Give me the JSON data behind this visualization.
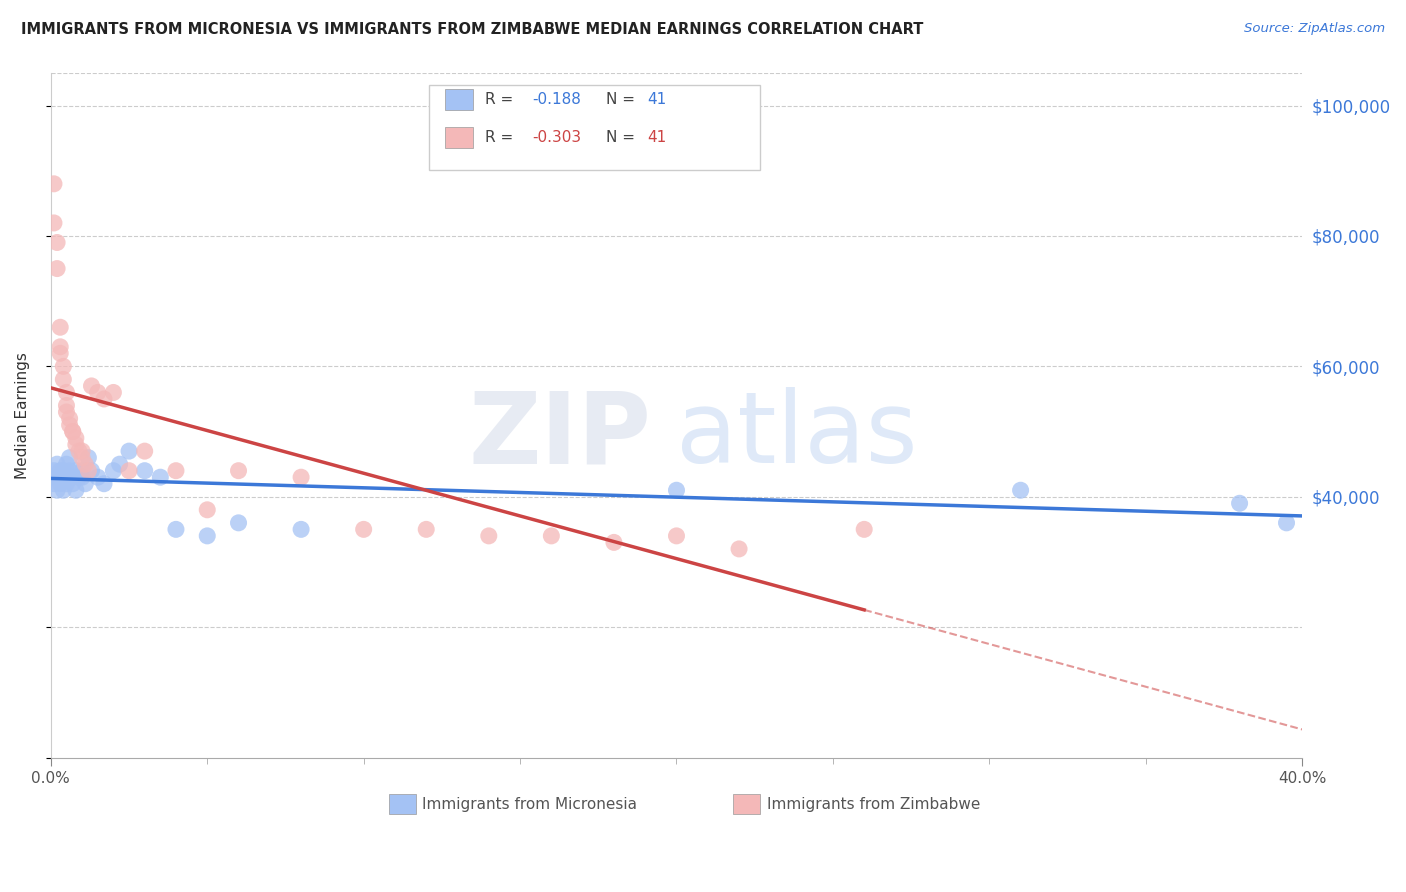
{
  "title": "IMMIGRANTS FROM MICRONESIA VS IMMIGRANTS FROM ZIMBABWE MEDIAN EARNINGS CORRELATION CHART",
  "source": "Source: ZipAtlas.com",
  "ylabel": "Median Earnings",
  "y_ticks": [
    0,
    20000,
    40000,
    60000,
    80000,
    100000
  ],
  "x_range": [
    0.0,
    0.4
  ],
  "y_range": [
    0,
    105000
  ],
  "blue_R": -0.188,
  "blue_N": 41,
  "pink_R": -0.303,
  "pink_N": 41,
  "blue_color": "#a4c2f4",
  "pink_color": "#f4b8b8",
  "blue_line_color": "#3c78d8",
  "pink_line_color": "#cc4444",
  "blue_scatter_x": [
    0.001,
    0.001,
    0.002,
    0.002,
    0.002,
    0.003,
    0.003,
    0.003,
    0.004,
    0.004,
    0.004,
    0.005,
    0.005,
    0.005,
    0.006,
    0.006,
    0.007,
    0.007,
    0.008,
    0.008,
    0.009,
    0.01,
    0.01,
    0.011,
    0.012,
    0.013,
    0.015,
    0.017,
    0.02,
    0.022,
    0.025,
    0.03,
    0.035,
    0.04,
    0.05,
    0.06,
    0.08,
    0.2,
    0.31,
    0.38,
    0.395
  ],
  "blue_scatter_y": [
    42000,
    44000,
    43000,
    45000,
    41000,
    44000,
    43000,
    42000,
    44000,
    43000,
    41000,
    45000,
    43000,
    42000,
    44000,
    46000,
    43000,
    42000,
    44000,
    41000,
    43000,
    44000,
    43000,
    42000,
    46000,
    44000,
    43000,
    42000,
    44000,
    45000,
    47000,
    44000,
    43000,
    35000,
    34000,
    36000,
    35000,
    41000,
    41000,
    39000,
    36000
  ],
  "pink_scatter_x": [
    0.001,
    0.001,
    0.002,
    0.002,
    0.003,
    0.003,
    0.003,
    0.004,
    0.004,
    0.005,
    0.005,
    0.005,
    0.006,
    0.006,
    0.007,
    0.007,
    0.008,
    0.008,
    0.009,
    0.01,
    0.01,
    0.011,
    0.012,
    0.013,
    0.015,
    0.017,
    0.02,
    0.025,
    0.03,
    0.04,
    0.05,
    0.06,
    0.08,
    0.1,
    0.12,
    0.14,
    0.16,
    0.18,
    0.2,
    0.22,
    0.26
  ],
  "pink_scatter_y": [
    88000,
    82000,
    79000,
    75000,
    66000,
    63000,
    62000,
    60000,
    58000,
    56000,
    54000,
    53000,
    52000,
    51000,
    50000,
    50000,
    49000,
    48000,
    47000,
    47000,
    46000,
    45000,
    44000,
    57000,
    56000,
    55000,
    56000,
    44000,
    47000,
    44000,
    38000,
    44000,
    43000,
    35000,
    35000,
    34000,
    34000,
    33000,
    34000,
    32000,
    35000
  ],
  "watermark_zip": "ZIP",
  "watermark_atlas": "atlas",
  "legend_label_blue": "Immigrants from Micronesia",
  "legend_label_pink": "Immigrants from Zimbabwe"
}
